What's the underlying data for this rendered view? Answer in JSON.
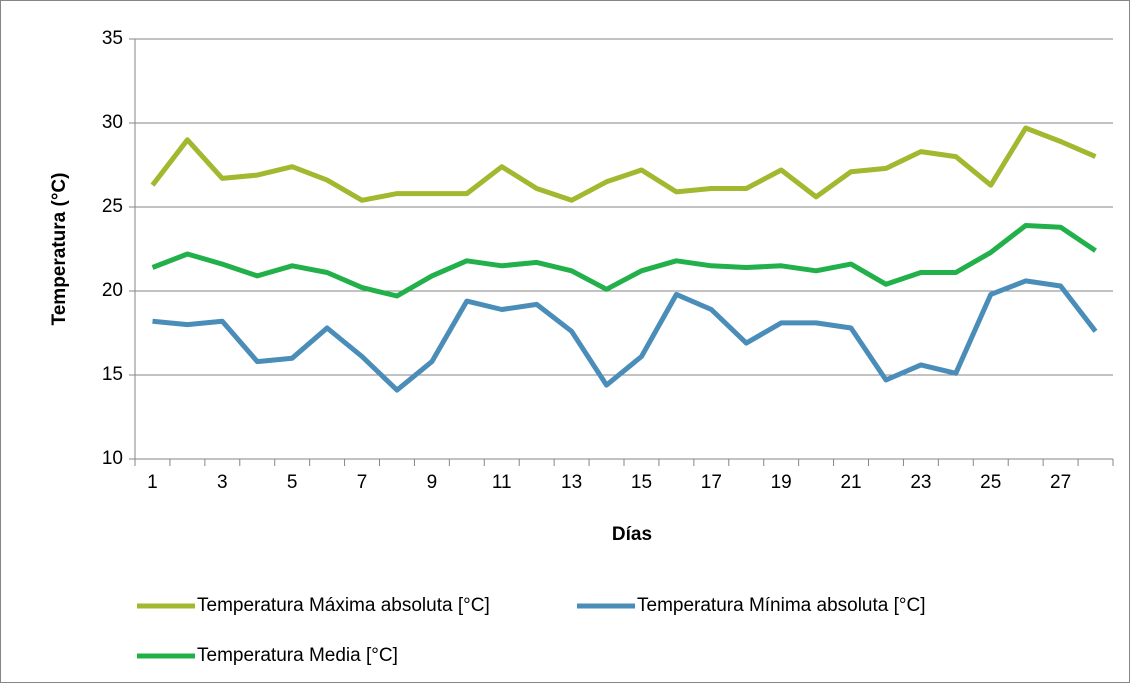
{
  "chart_data": {
    "type": "line",
    "x_label": "Días",
    "y_label": "Temperatura (°C)",
    "categories": [
      "1",
      null,
      "3",
      null,
      "5",
      null,
      "7",
      null,
      "9",
      null,
      "11",
      null,
      "13",
      null,
      "15",
      null,
      "17",
      null,
      "19",
      null,
      "21",
      null,
      "23",
      null,
      "25",
      null,
      "27",
      null
    ],
    "series": [
      {
        "name": "Temperatura Máxima absoluta [°C]",
        "color": "#a2b82f",
        "values": [
          26.3,
          29.0,
          26.7,
          26.9,
          27.4,
          26.6,
          25.4,
          25.8,
          25.8,
          25.8,
          27.4,
          26.1,
          25.4,
          26.5,
          27.2,
          25.9,
          26.1,
          26.1,
          27.2,
          25.6,
          27.1,
          27.3,
          28.3,
          28.0,
          26.3,
          29.7,
          28.9,
          28.0
        ]
      },
      {
        "name": "Temperatura Mínima absoluta [°C]",
        "color": "#4a8db8",
        "values": [
          18.2,
          18.0,
          18.2,
          15.8,
          16.0,
          17.8,
          16.1,
          14.1,
          15.8,
          19.4,
          18.9,
          19.2,
          17.6,
          14.4,
          16.1,
          19.8,
          18.9,
          16.9,
          18.1,
          18.1,
          17.8,
          14.7,
          15.6,
          15.1,
          19.8,
          20.6,
          20.3,
          17.6
        ]
      },
      {
        "name": "Temperatura Media [°C]",
        "color": "#22b04a",
        "values": [
          21.4,
          22.2,
          21.6,
          20.9,
          21.5,
          21.1,
          20.2,
          19.7,
          20.9,
          21.8,
          21.5,
          21.7,
          21.2,
          20.1,
          21.2,
          21.8,
          21.5,
          21.4,
          21.5,
          21.2,
          21.6,
          20.4,
          21.1,
          21.1,
          22.3,
          23.9,
          23.8,
          22.4
        ]
      }
    ],
    "ylim": [
      10,
      35
    ],
    "yticks": [
      10,
      15,
      20,
      25,
      30,
      35
    ],
    "grid": true
  }
}
